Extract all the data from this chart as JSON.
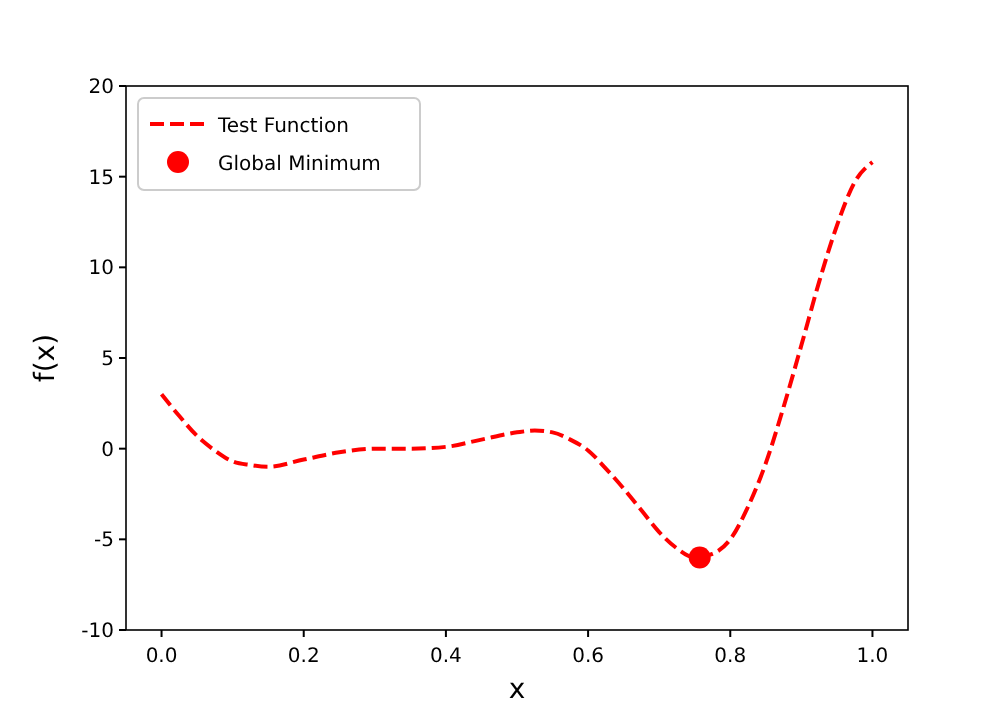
{
  "chart_data": {
    "type": "line",
    "xlabel": "x",
    "ylabel": "f(x)",
    "xlim": [
      -0.05,
      1.05
    ],
    "ylim": [
      -10,
      20
    ],
    "xticks": [
      {
        "value": 0,
        "label": "0.0"
      },
      {
        "value": 0.2,
        "label": "0.2"
      },
      {
        "value": 0.4,
        "label": "0.4"
      },
      {
        "value": 0.6,
        "label": "0.6"
      },
      {
        "value": 0.8,
        "label": "0.8"
      },
      {
        "value": 1,
        "label": "1.0"
      }
    ],
    "yticks": [
      -10,
      -5,
      0,
      5,
      10,
      15,
      20
    ],
    "legend": "top left",
    "series": [
      {
        "name": "Test Function",
        "color": "#ff0000",
        "line_style": "dashed",
        "marker": "none",
        "x": [
          0,
          0.025,
          0.05,
          0.075,
          0.1,
          0.125,
          0.15,
          0.2,
          0.25,
          0.3,
          0.35,
          0.4,
          0.45,
          0.5,
          0.525,
          0.55,
          0.575,
          0.6,
          0.625,
          0.65,
          0.675,
          0.7,
          0.725,
          0.75,
          0.775,
          0.8,
          0.825,
          0.85,
          0.875,
          0.9,
          0.925,
          0.95,
          0.975,
          1
        ],
        "values": [
          3.0,
          1.8,
          0.7,
          -0.1,
          -0.7,
          -0.9,
          -1.0,
          -0.6,
          -0.2,
          0.0,
          0.0,
          0.1,
          0.5,
          0.9,
          1.0,
          0.9,
          0.5,
          -0.1,
          -1.1,
          -2.2,
          -3.4,
          -4.6,
          -5.5,
          -6.0,
          -5.8,
          -5.0,
          -3.2,
          -0.8,
          2.3,
          5.7,
          9.2,
          12.3,
          14.7,
          15.8
        ]
      },
      {
        "name": "Global Minimum",
        "type": "scatter",
        "color": "#ff0000",
        "marker": "circle",
        "x": [
          0.757
        ],
        "values": [
          -6.0
        ]
      }
    ]
  }
}
